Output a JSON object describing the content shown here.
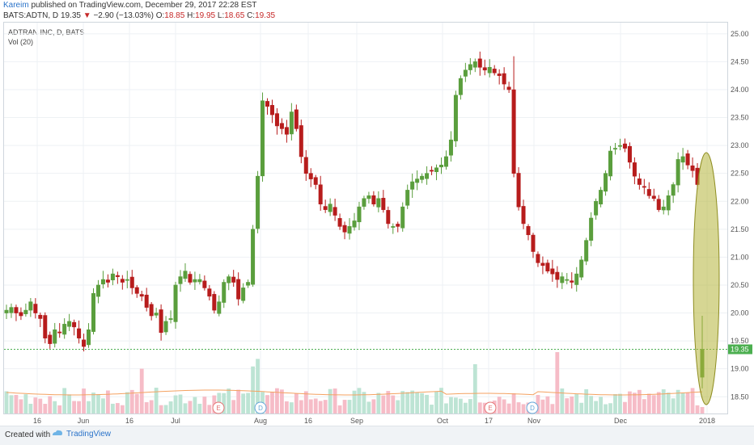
{
  "header": {
    "publisher": "Kareim",
    "published_text": "published on TradingView.com, December 29, 2017 22:28 EST",
    "symbol_line": "BATS:ADTN, D",
    "last": "19.35",
    "change": "−2.90 (−13.03%)",
    "o_label": "O:",
    "o_val": "18.85",
    "h_label": "H:",
    "h_val": "19.95",
    "l_label": "L:",
    "l_val": "18.65",
    "c_label": "C:",
    "c_val": "19.35"
  },
  "legend": {
    "title": "ADTRAN INC, D, BATS",
    "volume": "Vol (20)"
  },
  "footer": {
    "created_with": "Created with",
    "brand": "TradingView"
  },
  "colors": {
    "up": "#5a9e3d",
    "down": "#b71c1c",
    "vol_up": "#b9e3d2",
    "vol_down": "#f5b8c4",
    "grid": "#eef1f4",
    "price_line": "#4caf50",
    "ma": "#f4a261",
    "highlight": "#b5b43a"
  },
  "chart_data": {
    "type": "candlestick",
    "title": "ADTRAN INC, D, BATS",
    "symbol": "BATS:ADTN",
    "interval": "D",
    "ylim": [
      18.2,
      25.2
    ],
    "y_ticks": [
      "18.50",
      "19.00",
      "19.50",
      "20.00",
      "20.50",
      "21.00",
      "21.50",
      "22.00",
      "22.50",
      "23.00",
      "23.50",
      "24.00",
      "24.50",
      "25.00"
    ],
    "x_ticks": [
      "16",
      "Jun",
      "16",
      "Jul",
      "Aug",
      "16",
      "Sep",
      "Oct",
      "17",
      "Nov",
      "Dec",
      "2018"
    ],
    "last_price": 19.35,
    "grid": true,
    "event_markers": [
      "E",
      "D",
      "E",
      "D"
    ],
    "highlight_annotation": "ellipse around last bars",
    "series_price_path": [
      20.05,
      20.1,
      20.0,
      19.95,
      20.05,
      20.2,
      20.0,
      19.9,
      19.55,
      19.45,
      19.7,
      19.65,
      19.8,
      19.85,
      19.75,
      19.55,
      19.4,
      19.7,
      20.35,
      20.5,
      20.6,
      20.55,
      20.7,
      20.65,
      20.55,
      20.6,
      20.45,
      20.35,
      20.3,
      20.1,
      19.95,
      20.0,
      19.65,
      19.85,
      19.9,
      20.5,
      20.65,
      20.75,
      20.55,
      20.6,
      20.6,
      20.45,
      20.3,
      20.05,
      20.2,
      20.55,
      20.65,
      20.55,
      20.25,
      20.45,
      20.55,
      21.5,
      22.45,
      23.8,
      23.7,
      23.55,
      23.35,
      23.3,
      23.2,
      23.6,
      23.3,
      22.8,
      22.5,
      22.4,
      22.3,
      21.95,
      21.85,
      21.95,
      21.75,
      21.55,
      21.45,
      21.55,
      21.65,
      21.9,
      22.05,
      22.1,
      21.95,
      22.05,
      21.85,
      21.6,
      21.55,
      21.55,
      21.9,
      22.2,
      22.35,
      22.4,
      22.45,
      22.5,
      22.55,
      22.6,
      22.65,
      22.8,
      23.1,
      23.9,
      24.2,
      24.35,
      24.45,
      24.5,
      24.4,
      24.35,
      24.4,
      24.3,
      24.25,
      24.1,
      24.0,
      22.5,
      21.9,
      21.6,
      21.4,
      21.1,
      20.9,
      20.85,
      20.75,
      20.7,
      20.6,
      20.65,
      20.6,
      20.55,
      20.7,
      20.95,
      21.3,
      21.7,
      22.0,
      22.2,
      22.5,
      22.9,
      22.95,
      23.0,
      22.95,
      22.7,
      22.45,
      22.3,
      22.25,
      22.1,
      22.05,
      21.85,
      21.9,
      22.1,
      22.3,
      22.75,
      22.8,
      22.65,
      22.55,
      22.3,
      19.35
    ]
  }
}
